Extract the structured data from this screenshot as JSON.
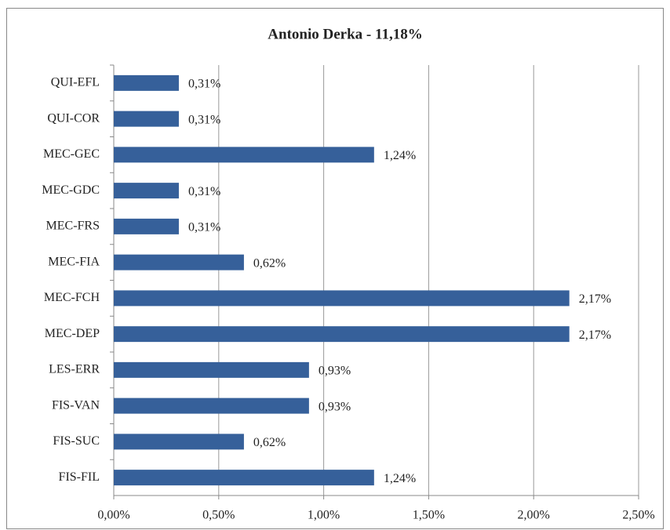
{
  "chart_data": {
    "type": "hbar",
    "title": "Antonio Derka - 11,18%",
    "categories": [
      "QUI-EFL",
      "QUI-COR",
      "MEC-GEC",
      "MEC-GDC",
      "MEC-FRS",
      "MEC-FIA",
      "MEC-FCH",
      "MEC-DEP",
      "LES-ERR",
      "FIS-VAN",
      "FIS-SUC",
      "FIS-FIL"
    ],
    "values": [
      0.31,
      0.31,
      1.24,
      0.31,
      0.31,
      0.62,
      2.17,
      2.17,
      0.93,
      0.93,
      0.62,
      1.24
    ],
    "value_labels": [
      "0,31%",
      "0,31%",
      "1,24%",
      "0,31%",
      "0,31%",
      "0,62%",
      "2,17%",
      "2,17%",
      "0,93%",
      "0,93%",
      "0,62%",
      "1,24%"
    ],
    "color": "#36609a",
    "xlim": [
      0,
      2.5
    ],
    "xticks": [
      {
        "value": 0,
        "label": "0,00%"
      },
      {
        "value": 0.5,
        "label": "0,50%"
      },
      {
        "value": 1,
        "label": "1,00%"
      },
      {
        "value": 1.5,
        "label": "1,50%"
      },
      {
        "value": 2,
        "label": "2,00%"
      },
      {
        "value": 2.5,
        "label": "2,50%"
      }
    ],
    "grid": true
  }
}
